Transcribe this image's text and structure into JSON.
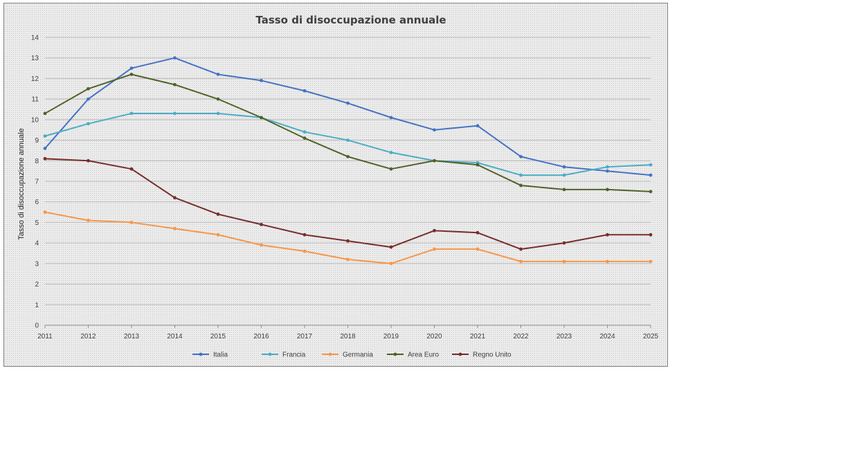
{
  "chart_data": {
    "type": "line",
    "title": "Tasso di disoccupazione annuale",
    "xlabel": "",
    "ylabel": "Tasso di disoccupazione annuale",
    "ylim": [
      0,
      14
    ],
    "yticks": [
      0,
      1,
      2,
      3,
      4,
      5,
      6,
      7,
      8,
      9,
      10,
      11,
      12,
      13,
      14
    ],
    "grid": true,
    "legend_position": "bottom",
    "x": [
      "2011",
      "2012",
      "2013",
      "2014",
      "2015",
      "2016",
      "2017",
      "2018",
      "2019",
      "2020",
      "2021",
      "2022",
      "2023",
      "2024",
      "2025"
    ],
    "series": [
      {
        "name": "Italia",
        "color": "#4472c4",
        "values": [
          8.6,
          11.0,
          12.5,
          13.0,
          12.2,
          11.9,
          11.4,
          10.8,
          10.1,
          9.5,
          9.7,
          8.2,
          7.7,
          7.5,
          7.3
        ]
      },
      {
        "name": "Francia",
        "color": "#4bacc6",
        "values": [
          9.2,
          9.8,
          10.3,
          10.3,
          10.3,
          10.1,
          9.4,
          9.0,
          8.4,
          8.0,
          7.9,
          7.3,
          7.3,
          7.7,
          7.8
        ]
      },
      {
        "name": "Germania",
        "color": "#f79646",
        "values": [
          5.5,
          5.1,
          5.0,
          4.7,
          4.4,
          3.9,
          3.6,
          3.2,
          3.0,
          3.7,
          3.7,
          3.1,
          3.1,
          3.1,
          3.1
        ]
      },
      {
        "name": "Area Euro",
        "color": "#4f6228",
        "values": [
          10.3,
          11.5,
          12.2,
          11.7,
          11.0,
          10.1,
          9.1,
          8.2,
          7.6,
          8.0,
          7.8,
          6.8,
          6.6,
          6.6,
          6.5
        ]
      },
      {
        "name": "Regno Unito",
        "color": "#772c2a",
        "values": [
          8.1,
          8.0,
          7.6,
          6.2,
          5.4,
          4.9,
          4.4,
          4.1,
          3.8,
          4.6,
          4.5,
          3.7,
          4.0,
          4.4,
          4.4
        ]
      }
    ]
  }
}
